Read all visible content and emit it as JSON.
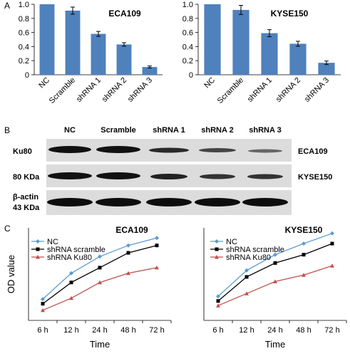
{
  "panel_labels": {
    "a": "A",
    "b": "B",
    "c": "C"
  },
  "chart_data": [
    {
      "type": "bar",
      "title": "ECA109",
      "categories": [
        "NC",
        "Scramble",
        "shRNA 1",
        "shRNA 2",
        "shRNA 3"
      ],
      "values": [
        1.0,
        0.91,
        0.58,
        0.43,
        0.11
      ],
      "errors": [
        0.0,
        0.05,
        0.035,
        0.025,
        0.015
      ],
      "ylim": [
        0,
        1.0
      ],
      "yticks": [
        "0",
        "0.2",
        "0.4",
        "0.6",
        "0.8",
        "1.0"
      ],
      "bar_color": "#4f81bd"
    },
    {
      "type": "bar",
      "title": "KYSE150",
      "categories": [
        "NC",
        "Scramble",
        "shRNA 1",
        "shRNA 2",
        "shRNA 3"
      ],
      "values": [
        1.0,
        0.92,
        0.59,
        0.44,
        0.17
      ],
      "errors": [
        0.0,
        0.065,
        0.05,
        0.035,
        0.025
      ],
      "ylim": [
        0,
        1.0
      ],
      "yticks": [
        "0",
        "0.2",
        "0.4",
        "0.6",
        "0.8",
        "1.0"
      ],
      "bar_color": "#4f81bd"
    },
    {
      "type": "line",
      "title": "ECA109",
      "xlabel": "Time",
      "ylabel": "OD  value",
      "categories": [
        "6 h",
        "12 h",
        "24 h",
        "48 h",
        "72 h"
      ],
      "ylim": [
        0,
        1.0
      ],
      "series": [
        {
          "name": "NC",
          "values": [
            0.23,
            0.51,
            0.69,
            0.81,
            0.89
          ],
          "color": "#5b9bd5",
          "marker": "diamond"
        },
        {
          "name": "shRNA scramble",
          "values": [
            0.18,
            0.41,
            0.57,
            0.73,
            0.81
          ],
          "color": "#000000",
          "marker": "square"
        },
        {
          "name": "shRNA Ku80",
          "values": [
            0.11,
            0.24,
            0.41,
            0.51,
            0.57
          ],
          "color": "#c0504d",
          "marker": "triangle"
        }
      ]
    },
    {
      "type": "line",
      "title": "KYSE150",
      "xlabel": "Time",
      "ylabel": "",
      "categories": [
        "6 h",
        "12 h",
        "24 h",
        "48 h",
        "72 h"
      ],
      "ylim": [
        0,
        1.0
      ],
      "series": [
        {
          "name": "NC",
          "values": [
            0.26,
            0.54,
            0.71,
            0.83,
            0.94
          ],
          "color": "#5b9bd5",
          "marker": "diamond"
        },
        {
          "name": "shRNA scramble",
          "values": [
            0.21,
            0.47,
            0.62,
            0.71,
            0.83
          ],
          "color": "#000000",
          "marker": "square"
        },
        {
          "name": "shRNA Ku80",
          "values": [
            0.16,
            0.29,
            0.42,
            0.49,
            0.59
          ],
          "color": "#c0504d",
          "marker": "triangle"
        }
      ]
    }
  ],
  "blot": {
    "lanes": [
      "NC",
      "Scramble",
      "shRNA 1",
      "shRNA 2",
      "shRNA 3"
    ],
    "row_labels": [
      "Ku80",
      "80 KDa",
      "β-actin",
      "43 KDa"
    ],
    "cell_labels": [
      "ECA109",
      "KYSE150"
    ]
  }
}
